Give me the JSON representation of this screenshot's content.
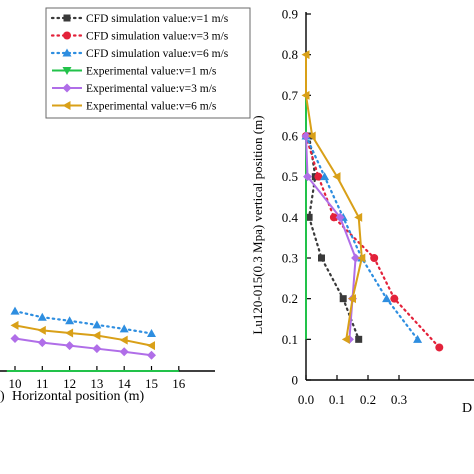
{
  "chart_data": [
    {
      "type": "line",
      "xlabel": "Horizontal position (m)",
      "xlabel_prefix": ")",
      "xlim": [
        9.7,
        16
      ],
      "ylim": [
        0,
        0.14
      ],
      "x_ticks": [
        "10",
        "11",
        "12",
        "13",
        "14",
        "15",
        "16"
      ],
      "series": [
        {
          "name": "CFD simulation value:v=1  m/s",
          "style": "dotted",
          "marker": "square",
          "color": "#3a3a3a",
          "points": []
        },
        {
          "name": "CFD simulation value:v=3  m/s",
          "style": "dotted",
          "marker": "circle",
          "color": "#e3223a",
          "points": []
        },
        {
          "name": "CFD simulation value:v=6  m/s",
          "style": "dotted",
          "marker": "triangle-up",
          "color": "#2e8ee0",
          "points": [
            [
              10,
              0.118
            ],
            [
              11,
              0.106
            ],
            [
              12,
              0.099
            ],
            [
              13,
              0.091
            ],
            [
              14,
              0.083
            ],
            [
              15,
              0.074
            ]
          ]
        },
        {
          "name": "Experimental value:v=1  m/s",
          "style": "solid",
          "marker": "triangle-down",
          "color": "#22c24a",
          "points": [
            [
              9.7,
              0.0
            ],
            [
              16,
              0.0
            ]
          ]
        },
        {
          "name": "Experimental value:v=3  m/s",
          "style": "solid",
          "marker": "diamond",
          "color": "#b06ee8",
          "points": [
            [
              10,
              0.064
            ],
            [
              11,
              0.056
            ],
            [
              12,
              0.05
            ],
            [
              13,
              0.044
            ],
            [
              14,
              0.038
            ],
            [
              15,
              0.031
            ]
          ]
        },
        {
          "name": "Experimental value:v=6  m/s",
          "style": "solid",
          "marker": "triangle-left",
          "color": "#d9a018",
          "points": [
            [
              10,
              0.09
            ],
            [
              11,
              0.08
            ],
            [
              12,
              0.075
            ],
            [
              13,
              0.07
            ],
            [
              14,
              0.061
            ],
            [
              15,
              0.05
            ]
          ]
        }
      ]
    },
    {
      "type": "line",
      "ylabel": "Lu120-015(0.3 Mpa) vertical position (m)",
      "xlabel": "D",
      "xlim": [
        0,
        0.43
      ],
      "ylim": [
        0,
        0.9
      ],
      "x_ticks": [
        "0.0",
        "0.1",
        "0.2",
        "0.3"
      ],
      "y_ticks": [
        "0",
        "0.1",
        "0.2",
        "0.3",
        "0.4",
        "0.5",
        "0.6",
        "0.7",
        "0.8",
        "0.9"
      ],
      "series": [
        {
          "name": "CFD simulation value:v=1  m/s",
          "style": "dotted",
          "marker": "square",
          "color": "#3a3a3a",
          "points": [
            [
              0.01,
              0.6
            ],
            [
              0.03,
              0.5
            ],
            [
              0.01,
              0.4
            ],
            [
              0.05,
              0.3
            ],
            [
              0.12,
              0.2
            ],
            [
              0.17,
              0.1
            ]
          ]
        },
        {
          "name": "CFD simulation value:v=3  m/s",
          "style": "dotted",
          "marker": "circle",
          "color": "#e3223a",
          "points": [
            [
              0.0,
              0.6
            ],
            [
              0.04,
              0.5
            ],
            [
              0.09,
              0.4
            ],
            [
              0.22,
              0.3
            ],
            [
              0.285,
              0.2
            ],
            [
              0.43,
              0.08
            ]
          ]
        },
        {
          "name": "CFD simulation value:v=6  m/s",
          "style": "dotted",
          "marker": "triangle-up",
          "color": "#2e8ee0",
          "points": [
            [
              0.0,
              0.6
            ],
            [
              0.06,
              0.5
            ],
            [
              0.12,
              0.4
            ],
            [
              0.18,
              0.3
            ],
            [
              0.26,
              0.2
            ],
            [
              0.36,
              0.1
            ]
          ]
        },
        {
          "name": "Experimental value:v=1  m/s",
          "style": "solid",
          "marker": "triangle-down",
          "color": "#22c24a",
          "points": [
            [
              0.0,
              0.1
            ],
            [
              0.0,
              0.2
            ],
            [
              0.0,
              0.3
            ],
            [
              0.0,
              0.4
            ],
            [
              0.0,
              0.5
            ],
            [
              0.0,
              0.6
            ],
            [
              0.0,
              0.7
            ],
            [
              0.0,
              0.8
            ]
          ]
        },
        {
          "name": "Experimental value:v=3  m/s",
          "style": "solid",
          "marker": "diamond",
          "color": "#b06ee8",
          "points": [
            [
              0.0,
              0.6
            ],
            [
              0.005,
              0.5
            ],
            [
              0.11,
              0.4
            ],
            [
              0.16,
              0.3
            ],
            [
              0.15,
              0.2
            ],
            [
              0.14,
              0.1
            ]
          ]
        },
        {
          "name": "Experimental value:v=6  m/s",
          "style": "solid",
          "marker": "triangle-left",
          "color": "#d9a018",
          "points": [
            [
              0.0,
              0.8
            ],
            [
              0.0,
              0.7
            ],
            [
              0.02,
              0.6
            ],
            [
              0.1,
              0.5
            ],
            [
              0.17,
              0.4
            ],
            [
              0.18,
              0.3
            ],
            [
              0.15,
              0.2
            ],
            [
              0.13,
              0.1
            ]
          ]
        }
      ]
    }
  ]
}
